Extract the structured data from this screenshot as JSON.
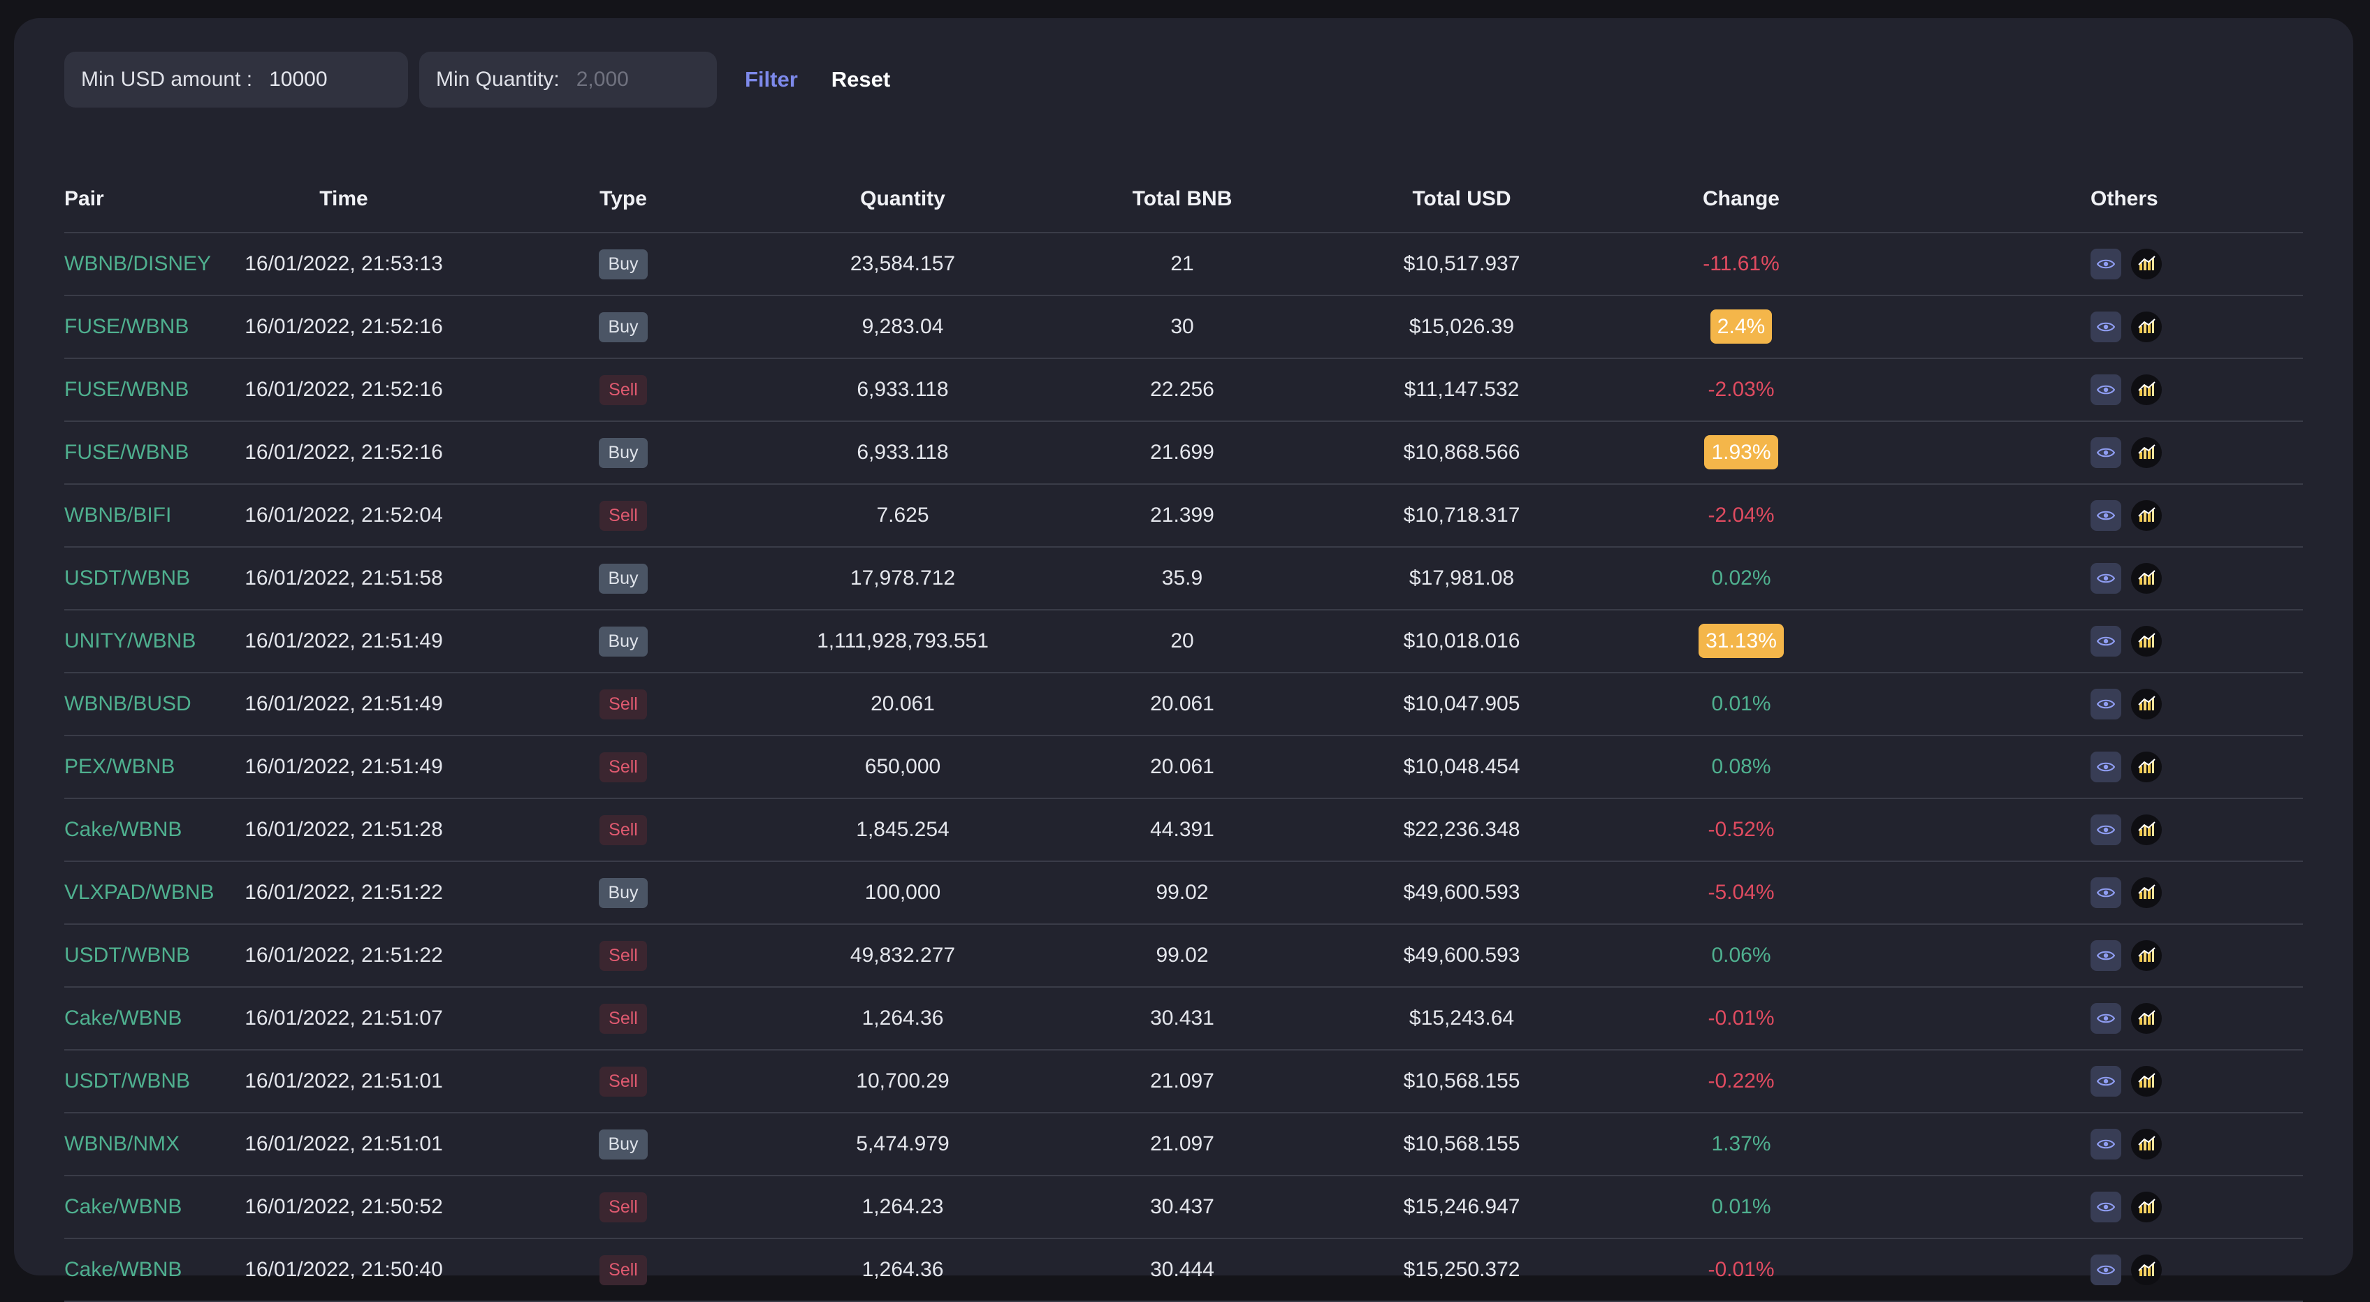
{
  "filters": {
    "min_usd_label": "Min USD amount :",
    "min_usd_value": "10000",
    "min_qty_label": "Min Quantity:",
    "min_qty_placeholder": "2,000",
    "filter_label": "Filter",
    "reset_label": "Reset"
  },
  "table": {
    "columns": [
      "Pair",
      "Time",
      "Type",
      "Quantity",
      "Total BNB",
      "Total USD",
      "Change",
      "Others"
    ],
    "rows": [
      {
        "pair": "WBNB/DISNEY",
        "time": "16/01/2022, 21:53:13",
        "type": "Buy",
        "quantity": "23,584.157",
        "total_bnb": "21",
        "total_usd": "$10,517.937",
        "change": "-11.61%",
        "change_style": "neg"
      },
      {
        "pair": "FUSE/WBNB",
        "time": "16/01/2022, 21:52:16",
        "type": "Buy",
        "quantity": "9,283.04",
        "total_bnb": "30",
        "total_usd": "$15,026.39",
        "change": "2.4%",
        "change_style": "hl"
      },
      {
        "pair": "FUSE/WBNB",
        "time": "16/01/2022, 21:52:16",
        "type": "Sell",
        "quantity": "6,933.118",
        "total_bnb": "22.256",
        "total_usd": "$11,147.532",
        "change": "-2.03%",
        "change_style": "neg"
      },
      {
        "pair": "FUSE/WBNB",
        "time": "16/01/2022, 21:52:16",
        "type": "Buy",
        "quantity": "6,933.118",
        "total_bnb": "21.699",
        "total_usd": "$10,868.566",
        "change": "1.93%",
        "change_style": "hl"
      },
      {
        "pair": "WBNB/BIFI",
        "time": "16/01/2022, 21:52:04",
        "type": "Sell",
        "quantity": "7.625",
        "total_bnb": "21.399",
        "total_usd": "$10,718.317",
        "change": "-2.04%",
        "change_style": "neg"
      },
      {
        "pair": "USDT/WBNB",
        "time": "16/01/2022, 21:51:58",
        "type": "Buy",
        "quantity": "17,978.712",
        "total_bnb": "35.9",
        "total_usd": "$17,981.08",
        "change": "0.02%",
        "change_style": "pos"
      },
      {
        "pair": "UNITY/WBNB",
        "time": "16/01/2022, 21:51:49",
        "type": "Buy",
        "quantity": "1,111,928,793.551",
        "total_bnb": "20",
        "total_usd": "$10,018.016",
        "change": "31.13%",
        "change_style": "hl"
      },
      {
        "pair": "WBNB/BUSD",
        "time": "16/01/2022, 21:51:49",
        "type": "Sell",
        "quantity": "20.061",
        "total_bnb": "20.061",
        "total_usd": "$10,047.905",
        "change": "0.01%",
        "change_style": "pos"
      },
      {
        "pair": "PEX/WBNB",
        "time": "16/01/2022, 21:51:49",
        "type": "Sell",
        "quantity": "650,000",
        "total_bnb": "20.061",
        "total_usd": "$10,048.454",
        "change": "0.08%",
        "change_style": "pos"
      },
      {
        "pair": "Cake/WBNB",
        "time": "16/01/2022, 21:51:28",
        "type": "Sell",
        "quantity": "1,845.254",
        "total_bnb": "44.391",
        "total_usd": "$22,236.348",
        "change": "-0.52%",
        "change_style": "neg"
      },
      {
        "pair": "VLXPAD/WBNB",
        "time": "16/01/2022, 21:51:22",
        "type": "Buy",
        "quantity": "100,000",
        "total_bnb": "99.02",
        "total_usd": "$49,600.593",
        "change": "-5.04%",
        "change_style": "neg"
      },
      {
        "pair": "USDT/WBNB",
        "time": "16/01/2022, 21:51:22",
        "type": "Sell",
        "quantity": "49,832.277",
        "total_bnb": "99.02",
        "total_usd": "$49,600.593",
        "change": "0.06%",
        "change_style": "pos"
      },
      {
        "pair": "Cake/WBNB",
        "time": "16/01/2022, 21:51:07",
        "type": "Sell",
        "quantity": "1,264.36",
        "total_bnb": "30.431",
        "total_usd": "$15,243.64",
        "change": "-0.01%",
        "change_style": "neg"
      },
      {
        "pair": "USDT/WBNB",
        "time": "16/01/2022, 21:51:01",
        "type": "Sell",
        "quantity": "10,700.29",
        "total_bnb": "21.097",
        "total_usd": "$10,568.155",
        "change": "-0.22%",
        "change_style": "neg"
      },
      {
        "pair": "WBNB/NMX",
        "time": "16/01/2022, 21:51:01",
        "type": "Buy",
        "quantity": "5,474.979",
        "total_bnb": "21.097",
        "total_usd": "$10,568.155",
        "change": "1.37%",
        "change_style": "pos"
      },
      {
        "pair": "Cake/WBNB",
        "time": "16/01/2022, 21:50:52",
        "type": "Sell",
        "quantity": "1,264.23",
        "total_bnb": "30.437",
        "total_usd": "$15,246.947",
        "change": "0.01%",
        "change_style": "pos"
      },
      {
        "pair": "Cake/WBNB",
        "time": "16/01/2022, 21:50:40",
        "type": "Sell",
        "quantity": "1,264.36",
        "total_bnb": "30.444",
        "total_usd": "$15,250.372",
        "change": "-0.01%",
        "change_style": "neg"
      }
    ]
  },
  "icons": {
    "view": "eye-icon",
    "chart": "chart-icon"
  },
  "colors": {
    "pair": "#4fb08f",
    "positive": "#4fb08f",
    "negative": "#e04b60",
    "highlight": "#f4b64a",
    "accent": "#7d89ea"
  }
}
